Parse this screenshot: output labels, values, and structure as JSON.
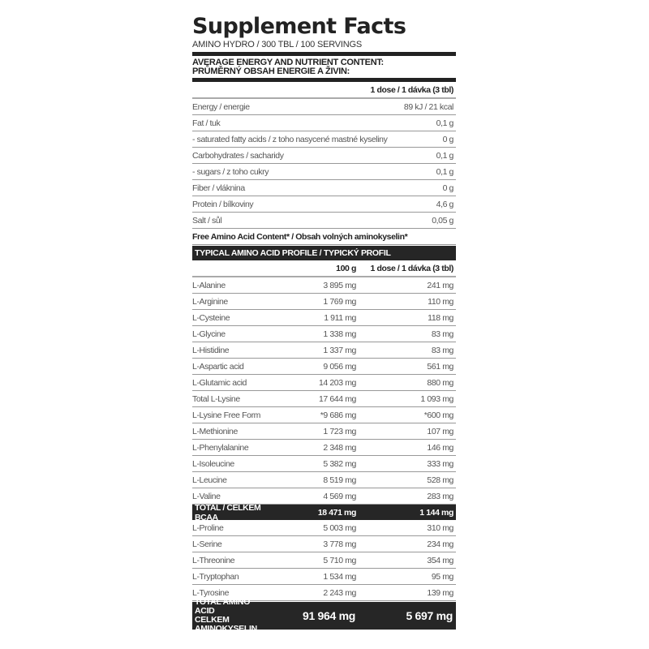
{
  "title": "Supplement Facts",
  "subtitle": "AMINO HYDRO / 300 TBL / 100 SERVINGS",
  "nutrient_header": [
    "AVERAGE ENERGY AND NUTRIENT CONTENT:",
    "PRŮMĚRNÝ OBSAH ENERGIE A ŽIVIN:"
  ],
  "nutrient_column": "1 dose / 1 dávka (3 tbl)",
  "nutrients": [
    {
      "name": "Energy / energie",
      "value": "89 kJ / 21 kcal"
    },
    {
      "name": "Fat / tuk",
      "value": "0,1 g"
    },
    {
      "name": "- saturated fatty acids / z toho nasycené mastné kyseliny",
      "value": "0 g"
    },
    {
      "name": "Carbohydrates / sacharidy",
      "value": "0,1 g"
    },
    {
      "name": "- sugars / z toho cukry",
      "value": "0,1 g"
    },
    {
      "name": "Fiber / vláknina",
      "value": "0 g"
    },
    {
      "name": "Protein / bílkoviny",
      "value": "4,6 g"
    },
    {
      "name": "Salt / sůl",
      "value": "0,05 g"
    }
  ],
  "free_amino_note": "Free Amino Acid Content* / Obsah volných aminokyselin*",
  "amino_header": "TYPICAL AMINO ACID PROFILE / TYPICKÝ PROFIL AMINOKYSELIN:",
  "amino_columns": [
    "100 g",
    "1 dose / 1 dávka (3 tbl)"
  ],
  "amino_acids": [
    {
      "name": "L-Alanine",
      "per100": "3 895 mg",
      "dose": "241 mg"
    },
    {
      "name": "L-Arginine",
      "per100": "1 769 mg",
      "dose": "110 mg"
    },
    {
      "name": "L-Cysteine",
      "per100": "1 911 mg",
      "dose": "118 mg"
    },
    {
      "name": "L-Glycine",
      "per100": "1 338 mg",
      "dose": "83 mg"
    },
    {
      "name": "L-Histidine",
      "per100": "1 337 mg",
      "dose": "83 mg"
    },
    {
      "name": "L-Aspartic acid",
      "per100": "9 056 mg",
      "dose": "561 mg"
    },
    {
      "name": "L-Glutamic acid",
      "per100": "14 203 mg",
      "dose": "880 mg"
    },
    {
      "name": "Total L-Lysine",
      "per100": "17 644 mg",
      "dose": "1 093 mg"
    },
    {
      "name": "L-Lysine Free Form",
      "per100": "*9 686 mg",
      "dose": "*600 mg"
    },
    {
      "name": "L-Methionine",
      "per100": "1 723 mg",
      "dose": "107 mg"
    },
    {
      "name": "L-Phenylalanine",
      "per100": "2 348 mg",
      "dose": "146 mg"
    },
    {
      "name": "L-Isoleucine",
      "per100": "5 382 mg",
      "dose": "333 mg"
    },
    {
      "name": "L-Leucine",
      "per100": "8 519 mg",
      "dose": "528 mg"
    },
    {
      "name": "L-Valine",
      "per100": "4 569 mg",
      "dose": "283 mg"
    },
    {
      "name": "TOTAL / CELKEM BCAA",
      "per100": "18 471 mg",
      "dose": "1 144 mg",
      "highlight": true
    },
    {
      "name": "L-Proline",
      "per100": "5 003 mg",
      "dose": "310 mg"
    },
    {
      "name": "L-Serine",
      "per100": "3 778 mg",
      "dose": "234 mg"
    },
    {
      "name": "L-Threonine",
      "per100": "5 710 mg",
      "dose": "354 mg"
    },
    {
      "name": "L-Tryptophan",
      "per100": "1 534 mg",
      "dose": "95 mg"
    },
    {
      "name": "L-Tyrosine",
      "per100": "2 243 mg",
      "dose": "139 mg"
    }
  ],
  "total": {
    "name": [
      "TOTAL AMINO ACID",
      "CELKEM AMINOKYSELIN"
    ],
    "per100": "91 964 mg",
    "dose": "5 697 mg"
  }
}
